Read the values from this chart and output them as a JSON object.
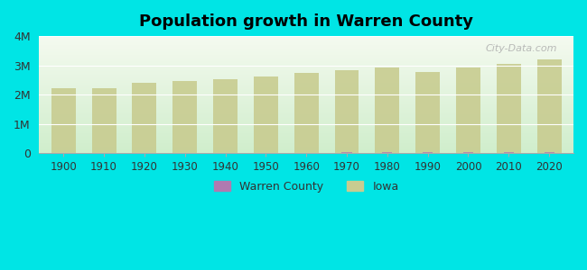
{
  "title": "Population growth in Warren County",
  "background_color": "#00e5e5",
  "plot_bg_top": "#f5faf0",
  "plot_bg_bottom": "#d0eecc",
  "years": [
    1900,
    1910,
    1920,
    1930,
    1940,
    1950,
    1960,
    1970,
    1980,
    1990,
    2000,
    2010,
    2020
  ],
  "iowa_population": [
    2231853,
    2224771,
    2404021,
    2470939,
    2538268,
    2621073,
    2757537,
    2824376,
    2913808,
    2776755,
    2926324,
    3046355,
    3190369
  ],
  "warren_county": [
    10792,
    11550,
    12184,
    13633,
    14000,
    14610,
    16953,
    27432,
    34878,
    36033,
    40671,
    46225,
    51466
  ],
  "iowa_color": "#c8cc90",
  "warren_color": "#b07ab0",
  "ylim": [
    0,
    4000000
  ],
  "yticks": [
    0,
    1000000,
    2000000,
    3000000,
    4000000
  ],
  "ytick_labels": [
    "0",
    "1M",
    "2M",
    "3M",
    "4M"
  ],
  "watermark": "City-Data.com"
}
